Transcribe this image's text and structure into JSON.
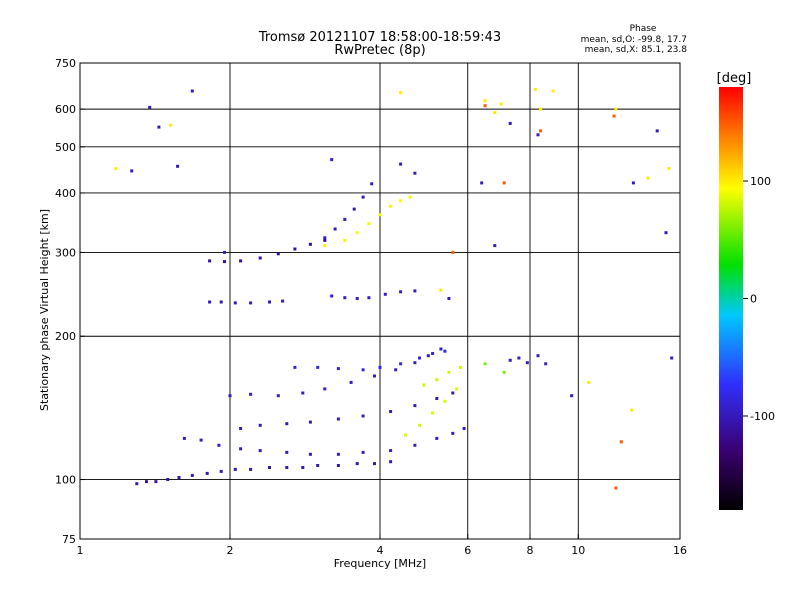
{
  "chart_data": {
    "type": "scatter",
    "title": "Tromsø 20121107 18:58:00-18:59:43",
    "subtitle": "RwPretec (8p)",
    "xlabel": "Frequency [MHz]",
    "ylabel": "Stationary phase Virtual Height [km]",
    "xscale": "log",
    "yscale": "log",
    "xlim": [
      1,
      16
    ],
    "ylim": [
      75,
      750
    ],
    "x_ticks": [
      1,
      2,
      4,
      6,
      8,
      10,
      16
    ],
    "x_tick_labels": [
      "1",
      "2",
      "4",
      "6",
      "8",
      "10",
      "16"
    ],
    "x_grid": [
      2,
      4,
      6,
      8,
      10
    ],
    "y_ticks": [
      75,
      100,
      200,
      300,
      400,
      500,
      600,
      750
    ],
    "y_tick_labels": [
      "75",
      "100",
      "200",
      "300",
      "400",
      "500",
      "600",
      "750"
    ],
    "y_grid": [
      100,
      200,
      300,
      400,
      500,
      600
    ],
    "grid": true,
    "stats": {
      "heading": "Phase",
      "line1": "mean, sd,O: -99.8, 17.7",
      "line2": "mean, sd,X:  85.1, 23.8"
    },
    "colorbar": {
      "label": "[deg]",
      "min": -180,
      "max": 180,
      "ticks": [
        100,
        0,
        -100
      ],
      "tick_labels": [
        "100",
        "0",
        "-100"
      ],
      "colors": [
        "#000000",
        "#3a0070",
        "#3030ff",
        "#00c8ff",
        "#00e000",
        "#ffff00",
        "#ff8000",
        "#ff0000"
      ]
    },
    "series": [
      {
        "phase": -105,
        "x": [
          1.3,
          1.36,
          1.42,
          1.5,
          1.58,
          1.68,
          1.8,
          1.92,
          2.05,
          2.2,
          2.4,
          2.6,
          2.8,
          3.0,
          3.3,
          3.6,
          3.9,
          4.2
        ],
        "y": [
          98,
          99,
          99,
          100,
          101,
          102,
          103,
          104,
          105,
          105,
          106,
          106,
          106,
          107,
          107,
          108,
          108,
          109
        ]
      },
      {
        "phase": -95,
        "x": [
          1.62,
          1.75,
          1.9,
          2.1,
          2.3,
          2.6,
          2.9,
          3.3,
          3.7,
          4.2,
          4.7,
          5.2,
          5.6,
          5.9
        ],
        "y": [
          122,
          121,
          118,
          116,
          115,
          114,
          113,
          113,
          114,
          115,
          118,
          122,
          125,
          128
        ]
      },
      {
        "phase": -100,
        "x": [
          2.1,
          2.3,
          2.6,
          2.9,
          3.3,
          3.7,
          4.2,
          4.7,
          5.2,
          5.6
        ],
        "y": [
          128,
          130,
          131,
          132,
          134,
          136,
          139,
          143,
          148,
          152
        ]
      },
      {
        "phase": -95,
        "x": [
          2.0,
          2.2,
          2.5,
          2.8,
          3.1,
          3.5,
          3.9,
          4.3,
          4.7,
          5.0,
          5.3
        ],
        "y": [
          150,
          151,
          150,
          152,
          155,
          160,
          165,
          170,
          176,
          182,
          188
        ]
      },
      {
        "phase": -85,
        "x": [
          2.7,
          3.0,
          3.3,
          3.7,
          4.0,
          4.4,
          4.8,
          5.1,
          5.4
        ],
        "y": [
          172,
          172,
          171,
          170,
          172,
          175,
          180,
          184,
          186
        ]
      },
      {
        "phase": -100,
        "x": [
          1.82,
          1.92,
          2.05,
          2.2,
          2.4,
          2.55
        ],
        "y": [
          236,
          236,
          235,
          235,
          236,
          237
        ]
      },
      {
        "phase": -95,
        "x": [
          3.2,
          3.4,
          3.6,
          3.8,
          4.1,
          4.4,
          4.7
        ],
        "y": [
          243,
          241,
          240,
          241,
          245,
          248,
          249
        ]
      },
      {
        "phase": -110,
        "x": [
          1.82,
          1.95,
          2.1,
          2.3,
          2.5,
          2.7,
          2.9,
          3.1
        ],
        "y": [
          288,
          287,
          288,
          292,
          298,
          305,
          312,
          318
        ]
      },
      {
        "phase": -100,
        "x": [
          3.1,
          3.25,
          3.4,
          3.55,
          3.7,
          3.85
        ],
        "y": [
          322,
          336,
          352,
          370,
          392,
          418
        ]
      },
      {
        "phase": 90,
        "x": [
          3.4,
          3.6,
          3.8,
          4.0,
          4.2,
          4.4,
          4.6
        ],
        "y": [
          318,
          330,
          345,
          360,
          375,
          385,
          392
        ]
      },
      {
        "phase": 85,
        "x": [
          4.5,
          4.8,
          5.1,
          5.4,
          5.7
        ],
        "y": [
          124,
          130,
          138,
          146,
          155
        ]
      },
      {
        "phase": 80,
        "x": [
          4.9,
          5.2,
          5.5,
          5.8
        ],
        "y": [
          158,
          162,
          168,
          172
        ]
      },
      {
        "phase": 60,
        "x": [
          6.5,
          7.1,
          7.6
        ],
        "y": [
          175,
          168,
          180
        ]
      },
      {
        "phase": -95,
        "x": [
          7.3,
          7.6,
          7.9,
          8.3,
          8.6
        ],
        "y": [
          178,
          180,
          176,
          182,
          175
        ]
      },
      {
        "phase": -100,
        "x": [
          1.27,
          1.38,
          1.44,
          1.57,
          1.68,
          1.95,
          3.2,
          4.4,
          4.7,
          5.5,
          6.4,
          6.8,
          7.3,
          8.3,
          9.7,
          12.9,
          14.4,
          15.0,
          15.4
        ],
        "y": [
          445,
          605,
          550,
          455,
          655,
          300,
          470,
          460,
          440,
          240,
          420,
          310,
          560,
          530,
          150,
          420,
          540,
          330,
          180
        ]
      },
      {
        "phase": 100,
        "x": [
          1.18,
          1.52,
          3.1,
          4.4,
          5.3,
          6.5,
          6.8,
          7.0,
          8.2,
          8.4,
          8.9,
          10.5,
          11.9,
          12.8,
          13.8,
          15.2
        ],
        "y": [
          450,
          555,
          310,
          650,
          250,
          625,
          590,
          615,
          660,
          600,
          655,
          160,
          600,
          140,
          430,
          450
        ]
      },
      {
        "phase": 150,
        "x": [
          6.5,
          7.1,
          8.4,
          11.8,
          11.9,
          12.2,
          5.6
        ],
        "y": [
          610,
          420,
          540,
          580,
          96,
          120,
          300
        ]
      }
    ]
  }
}
